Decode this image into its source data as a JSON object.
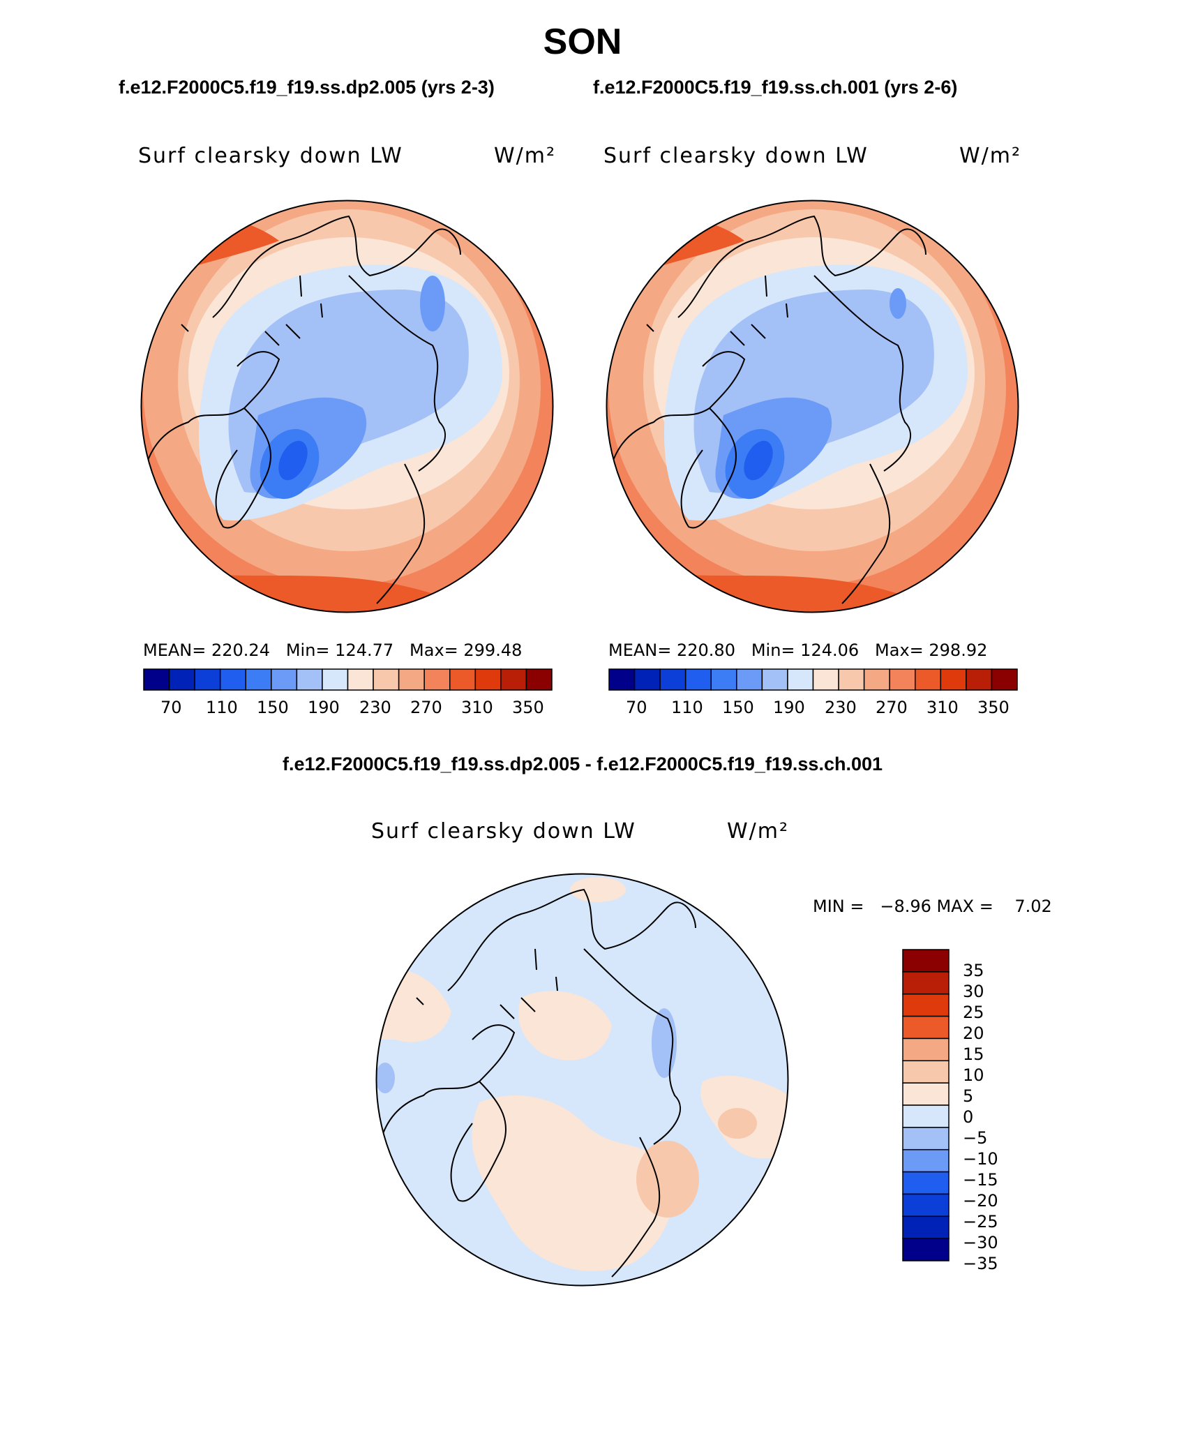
{
  "figure": {
    "season": "SON",
    "subtitle_left": "f.e12.F2000C5.f19_f19.ss.dp2.005 (yrs 2-3)",
    "subtitle_right": "f.e12.F2000C5.f19_f19.ss.ch.001 (yrs 2-6)",
    "diff_title": "f.e12.F2000C5.f19_f19.ss.dp2.005 - f.e12.F2000C5.f19_f19.ss.ch.001"
  },
  "panels": [
    {
      "variable": "Surf clearsky down LW",
      "units": "W/m²",
      "stats": "MEAN= 220.24   Min= 124.77   Max= 299.48"
    },
    {
      "variable": "Surf clearsky down LW",
      "units": "W/m²",
      "stats": "MEAN= 220.80   Min= 124.06   Max= 298.92"
    }
  ],
  "diff_panel": {
    "variable": "Surf clearsky down LW",
    "units": "W/m²",
    "minmax": "MIN =   −8.96 MAX =    7.02"
  },
  "colors": {
    "abs_scale": [
      "#00008b",
      "#0022b6",
      "#0b3fd8",
      "#1f5eee",
      "#3c7cf4",
      "#6b9bf6",
      "#a3c0f7",
      "#d6e6fb",
      "#fbe5d6",
      "#f8c8ac",
      "#f5a884",
      "#f2835a",
      "#ec5a2a",
      "#de3a0c",
      "#b91f06",
      "#8b0000"
    ],
    "diff_scale": [
      "#00008b",
      "#0022b6",
      "#0b3fd8",
      "#1f5eee",
      "#6b9bf6",
      "#a3c0f7",
      "#d6e6fb",
      "#fbe5d6",
      "#f8c8ac",
      "#f5a884",
      "#ec5a2a",
      "#de3a0c",
      "#b91f06",
      "#8b0000"
    ]
  },
  "chart_data": [
    {
      "type": "heatmap",
      "title": "Surf clearsky down LW",
      "units": "W/m²",
      "projection": "north polar stereographic",
      "colorbar_ticks": [
        "70",
        "110",
        "150",
        "190",
        "230",
        "270",
        "310",
        "350"
      ],
      "mean": 220.24,
      "min": 124.77,
      "max": 299.48
    },
    {
      "type": "heatmap",
      "title": "Surf clearsky down LW",
      "units": "W/m²",
      "projection": "north polar stereographic",
      "colorbar_ticks": [
        "70",
        "110",
        "150",
        "190",
        "230",
        "270",
        "310",
        "350"
      ],
      "mean": 220.8,
      "min": 124.06,
      "max": 298.92
    },
    {
      "type": "heatmap",
      "title": "Surf clearsky down LW",
      "units": "W/m²",
      "projection": "north polar stereographic",
      "colorbar_levels": [
        "35",
        "30",
        "25",
        "20",
        "15",
        "10",
        "5",
        "0",
        "−5",
        "−10",
        "−15",
        "−20",
        "−25",
        "−30",
        "−35"
      ],
      "min": -8.96,
      "max": 7.02
    }
  ]
}
